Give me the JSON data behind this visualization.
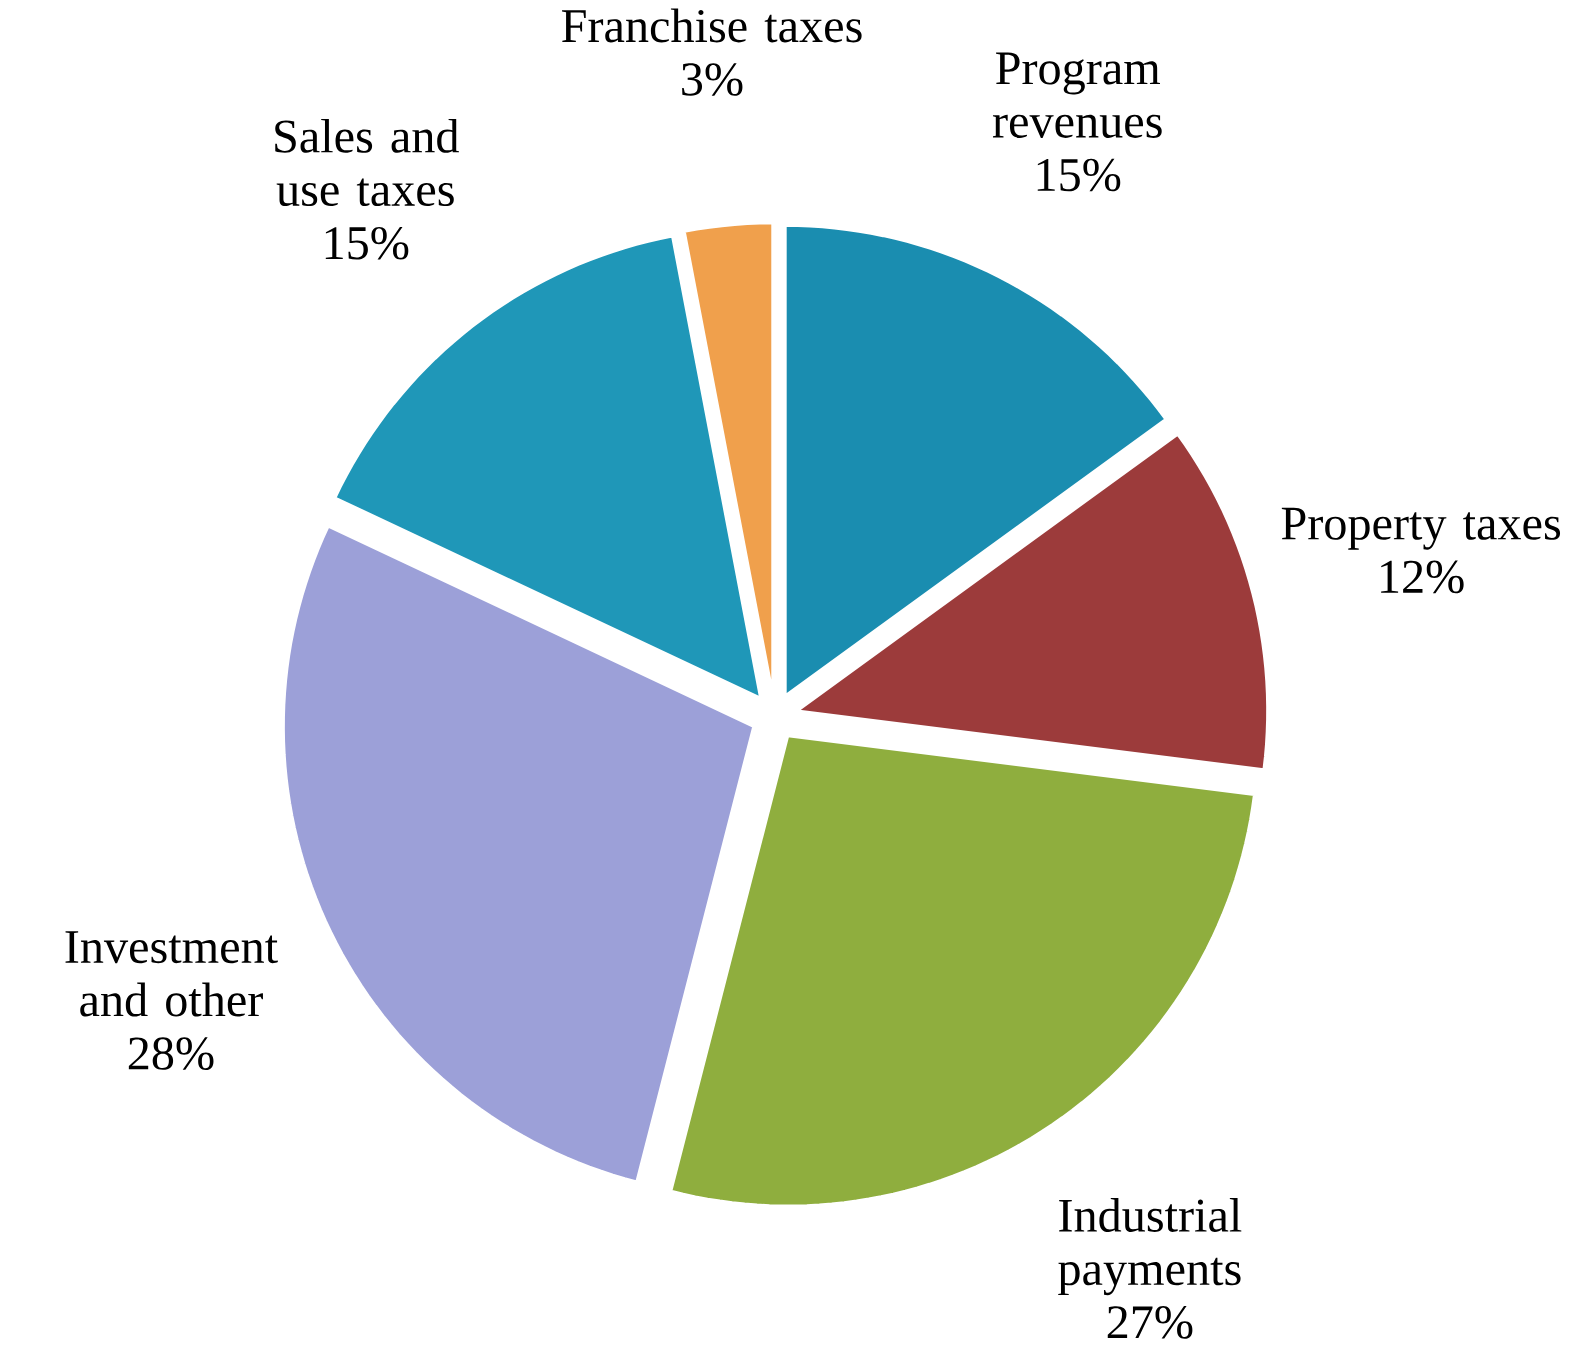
{
  "chart_data": {
    "type": "pie",
    "categories": [
      "Program revenues",
      "Property taxes",
      "Industrial payments",
      "Investment and other",
      "Sales and use taxes",
      "Franchise taxes"
    ],
    "values": [
      15,
      12,
      27,
      28,
      15,
      3
    ],
    "value_labels": [
      "15%",
      "12%",
      "27%",
      "28%",
      "15%",
      "3%"
    ],
    "colors": [
      "#1a8db0",
      "#9c3b3b",
      "#8fae3e",
      "#9ca0d8",
      "#1f97b8",
      "#f0a04c"
    ]
  }
}
